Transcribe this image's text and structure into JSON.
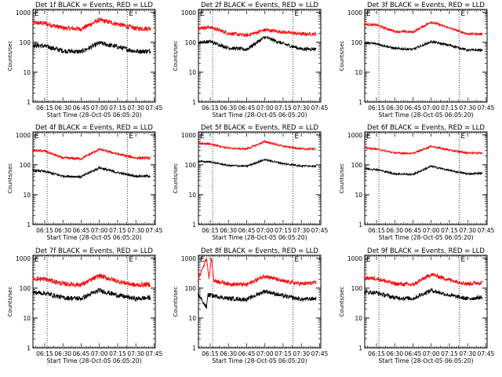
{
  "chart_data": [
    {
      "type": "line",
      "title": "Det 1f BLACK = Events, RED = LLD",
      "xlabel": "Start Time (28-Oct-05 06:05:20)",
      "ylabel": "Counts/sec",
      "yscale": "log",
      "xticklabels": [
        "06:15",
        "06:30",
        "06:45",
        "07:00",
        "07:15",
        "07:30",
        "07:45"
      ],
      "yticklabels": [
        "1",
        "10",
        "100",
        "1000"
      ],
      "markers": [
        "E",
        "E"
      ],
      "series": [
        {
          "color": "#ff0000",
          "role": "LLD",
          "base": 290,
          "peak": 560,
          "noise": 0.015,
          "x": [
            "06:05",
            "06:15",
            "06:30",
            "06:45",
            "07:00",
            "07:15",
            "07:30",
            "07:42"
          ],
          "y": [
            460,
            430,
            300,
            280,
            560,
            410,
            290,
            290
          ]
        },
        {
          "color": "#000000",
          "role": "Events",
          "base": 48,
          "peak": 95,
          "noise": 0.03,
          "x": [
            "06:05",
            "06:15",
            "06:30",
            "06:45",
            "07:00",
            "07:15",
            "07:30",
            "07:42"
          ],
          "y": [
            80,
            75,
            52,
            48,
            95,
            70,
            50,
            50
          ]
        }
      ]
    },
    {
      "type": "line",
      "title": "Det 2f BLACK = Events, RED = LLD",
      "xlabel": "Start Time (28-Oct-05 06:05:20)",
      "ylabel": "Counts/sec",
      "yscale": "log",
      "xticklabels": [
        "06:15",
        "06:30",
        "06:45",
        "07:00",
        "07:15",
        "07:30",
        "07:45"
      ],
      "yticklabels": [
        "1",
        "10",
        "100",
        "1000"
      ],
      "markers": [
        "E",
        "E"
      ],
      "series": [
        {
          "color": "#ff0000",
          "role": "LLD",
          "x": [
            "06:05",
            "06:15",
            "06:30",
            "06:45",
            "07:00",
            "07:15",
            "07:30",
            "07:42"
          ],
          "y": [
            300,
            320,
            200,
            170,
            260,
            220,
            190,
            190
          ]
        },
        {
          "color": "#000000",
          "role": "Events",
          "x": [
            "06:05",
            "06:15",
            "06:30",
            "06:45",
            "07:00",
            "07:15",
            "07:30",
            "07:42"
          ],
          "y": [
            100,
            105,
            65,
            58,
            150,
            90,
            60,
            60
          ]
        }
      ]
    },
    {
      "type": "line",
      "title": "Det 3f BLACK = Events, RED = LLD",
      "xlabel": "Start Time (28-Oct-05 06:05:20)",
      "ylabel": "Counts/sec",
      "yscale": "log",
      "xticklabels": [
        "06:15",
        "06:30",
        "06:45",
        "07:00",
        "07:15",
        "07:30",
        "07:45"
      ],
      "yticklabels": [
        "1",
        "10",
        "100",
        "1000"
      ],
      "markers": [
        "E",
        "E"
      ],
      "series": [
        {
          "color": "#ff0000",
          "role": "LLD",
          "x": [
            "06:05",
            "06:15",
            "06:30",
            "06:45",
            "07:00",
            "07:15",
            "07:30",
            "07:42"
          ],
          "y": [
            400,
            380,
            230,
            220,
            480,
            300,
            190,
            190
          ]
        },
        {
          "color": "#000000",
          "role": "Events",
          "x": [
            "06:05",
            "06:15",
            "06:30",
            "06:45",
            "07:00",
            "07:15",
            "07:30",
            "07:42"
          ],
          "y": [
            95,
            90,
            62,
            58,
            105,
            80,
            55,
            55
          ]
        }
      ]
    },
    {
      "type": "line",
      "title": "Det 4f BLACK = Events, RED = LLD",
      "xlabel": "Start Time (28-Oct-05 06:05:20)",
      "ylabel": "Counts/sec",
      "yscale": "log",
      "xticklabels": [
        "06:15",
        "06:30",
        "06:45",
        "07:00",
        "07:15",
        "07:30",
        "07:45"
      ],
      "yticklabels": [
        "1",
        "10",
        "100",
        "1000"
      ],
      "markers": [
        "E",
        "E"
      ],
      "series": [
        {
          "color": "#ff0000",
          "role": "LLD",
          "x": [
            "06:05",
            "06:15",
            "06:30",
            "06:45",
            "07:00",
            "07:15",
            "07:30",
            "07:42"
          ],
          "y": [
            300,
            290,
            170,
            160,
            330,
            230,
            170,
            170
          ]
        },
        {
          "color": "#000000",
          "role": "Events",
          "x": [
            "06:05",
            "06:15",
            "06:30",
            "06:45",
            "07:00",
            "07:15",
            "07:30",
            "07:42"
          ],
          "y": [
            65,
            60,
            42,
            40,
            80,
            55,
            42,
            42
          ]
        }
      ]
    },
    {
      "type": "line",
      "title": "Det 5f BLACK = Events, RED = LLD",
      "xlabel": "Start Time (28-Oct-05 06:05:20)",
      "ylabel": "Counts/sec",
      "yscale": "log",
      "xticklabels": [
        "06:15",
        "06:30",
        "06:45",
        "07:00",
        "07:15",
        "07:30",
        "07:45"
      ],
      "yticklabels": [
        "1",
        "10",
        "100",
        "1000"
      ],
      "markers": [
        "E",
        "E"
      ],
      "series": [
        {
          "color": "#ff0000",
          "role": "LLD",
          "x": [
            "06:05",
            "06:15",
            "06:30",
            "06:45",
            "07:00",
            "07:15",
            "07:30",
            "07:42"
          ],
          "y": [
            520,
            500,
            360,
            340,
            600,
            420,
            340,
            340
          ]
        },
        {
          "color": "#000000",
          "role": "Events",
          "x": [
            "06:05",
            "06:15",
            "06:30",
            "06:45",
            "07:00",
            "07:15",
            "07:30",
            "07:42"
          ],
          "y": [
            130,
            125,
            95,
            90,
            150,
            110,
            92,
            92
          ]
        }
      ]
    },
    {
      "type": "line",
      "title": "Det 6f BLACK = Events, RED = LLD",
      "xlabel": "Start Time (28-Oct-05 06:05:20)",
      "ylabel": "Counts/sec",
      "yscale": "log",
      "xticklabels": [
        "06:15",
        "06:30",
        "06:45",
        "07:00",
        "07:15",
        "07:30",
        "07:45"
      ],
      "yticklabels": [
        "1",
        "10",
        "100",
        "1000"
      ],
      "markers": [
        "E",
        "E"
      ],
      "series": [
        {
          "color": "#ff0000",
          "role": "LLD",
          "x": [
            "06:05",
            "06:15",
            "06:30",
            "06:45",
            "07:00",
            "07:15",
            "07:30",
            "07:42"
          ],
          "y": [
            360,
            340,
            250,
            240,
            420,
            310,
            250,
            250
          ]
        },
        {
          "color": "#000000",
          "role": "Events",
          "x": [
            "06:05",
            "06:15",
            "06:30",
            "06:45",
            "07:00",
            "07:15",
            "07:30",
            "07:42"
          ],
          "y": [
            75,
            70,
            50,
            48,
            90,
            65,
            50,
            52
          ]
        }
      ]
    },
    {
      "type": "line",
      "title": "Det 7f BLACK = Events, RED = LLD",
      "xlabel": "Start Time (28-Oct-05 06:05:20)",
      "ylabel": "Counts/sec",
      "yscale": "log",
      "xticklabels": [
        "06:15",
        "06:30",
        "06:45",
        "07:00",
        "07:15",
        "07:30",
        "07:45"
      ],
      "yticklabels": [
        "1",
        "10",
        "100",
        "1000"
      ],
      "markers": [
        "E",
        "E"
      ],
      "series": [
        {
          "color": "#ff0000",
          "role": "LLD",
          "x": [
            "06:05",
            "06:15",
            "06:30",
            "06:45",
            "07:00",
            "07:15",
            "07:30",
            "07:42"
          ],
          "y": [
            210,
            200,
            140,
            130,
            260,
            170,
            125,
            135
          ]
        },
        {
          "color": "#000000",
          "role": "Events",
          "x": [
            "06:05",
            "06:15",
            "06:30",
            "06:45",
            "07:00",
            "07:15",
            "07:30",
            "07:42"
          ],
          "y": [
            72,
            68,
            48,
            45,
            85,
            58,
            44,
            48
          ]
        }
      ]
    },
    {
      "type": "line",
      "title": "Det 8f BLACK = Events, RED = LLD",
      "xlabel": "Start Time (28-Oct-05 06:05:20)",
      "ylabel": "Counts/sec",
      "yscale": "log",
      "xticklabels": [
        "06:15",
        "06:30",
        "06:45",
        "07:00",
        "07:15",
        "07:30",
        "07:45"
      ],
      "yticklabels": [
        "1",
        "10",
        "100",
        "1000"
      ],
      "markers": [
        "E",
        "E"
      ],
      "series": [
        {
          "color": "#ff0000",
          "role": "LLD",
          "x": [
            "06:05",
            "06:12",
            "06:14",
            "06:16",
            "06:18",
            "06:30",
            "06:45",
            "07:00",
            "07:15",
            "07:30",
            "07:42"
          ],
          "y": [
            190,
            1000,
            230,
            1000,
            180,
            140,
            130,
            260,
            170,
            140,
            150
          ]
        },
        {
          "color": "#000000",
          "role": "Events",
          "x": [
            "06:05",
            "06:12",
            "06:13",
            "06:15",
            "06:30",
            "06:45",
            "07:00",
            "07:15",
            "07:30",
            "07:42"
          ],
          "y": [
            65,
            22,
            60,
            58,
            45,
            42,
            80,
            55,
            42,
            45
          ]
        }
      ]
    },
    {
      "type": "line",
      "title": "Det 9f BLACK = Events, RED = LLD",
      "xlabel": "Start Time (28-Oct-05 06:05:20)",
      "ylabel": "Counts/sec",
      "yscale": "log",
      "xticklabels": [
        "06:15",
        "06:30",
        "06:45",
        "07:00",
        "07:15",
        "07:30",
        "07:45"
      ],
      "yticklabels": [
        "1",
        "10",
        "100",
        "1000"
      ],
      "markers": [
        "E",
        "E"
      ],
      "series": [
        {
          "color": "#ff0000",
          "role": "LLD",
          "x": [
            "06:05",
            "06:15",
            "06:30",
            "06:45",
            "07:00",
            "07:15",
            "07:30",
            "07:42"
          ],
          "y": [
            220,
            210,
            140,
            130,
            290,
            190,
            140,
            155
          ]
        },
        {
          "color": "#000000",
          "role": "Events",
          "x": [
            "06:05",
            "06:15",
            "06:30",
            "06:45",
            "07:00",
            "07:15",
            "07:30",
            "07:42"
          ],
          "y": [
            75,
            70,
            48,
            45,
            85,
            58,
            44,
            50
          ]
        }
      ]
    }
  ]
}
